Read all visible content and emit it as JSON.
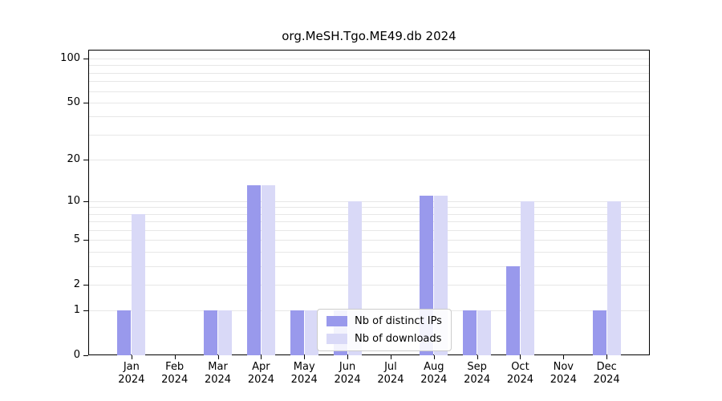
{
  "chart_data": {
    "type": "bar",
    "title": "org.MeSH.Tgo.ME49.db 2024",
    "categories": [
      "Jan",
      "Feb",
      "Mar",
      "Apr",
      "May",
      "Jun",
      "Jul",
      "Aug",
      "Sep",
      "Oct",
      "Nov",
      "Dec"
    ],
    "year_label": "2024",
    "series": [
      {
        "name": "Nb of distinct IPs",
        "color": "#9999ec",
        "values": [
          1,
          0,
          1,
          13,
          1,
          1,
          0,
          11,
          1,
          3,
          0,
          1
        ]
      },
      {
        "name": "Nb of downloads",
        "color": "#d9d9f7",
        "values": [
          8,
          0,
          1,
          13,
          1,
          10,
          0,
          11,
          1,
          10,
          0,
          10
        ]
      }
    ],
    "yscale": "log1p",
    "ylim": [
      0,
      115
    ],
    "ytick_values": [
      0,
      1,
      2,
      5,
      10,
      20,
      50,
      100
    ],
    "grid_values": [
      1,
      2,
      3,
      4,
      5,
      6,
      7,
      8,
      9,
      10,
      20,
      30,
      40,
      50,
      60,
      70,
      80,
      90,
      100
    ],
    "grid": true,
    "legend_position": "lower center",
    "colors": {
      "grid": "#e7e7e7",
      "axis": "#000000"
    }
  }
}
